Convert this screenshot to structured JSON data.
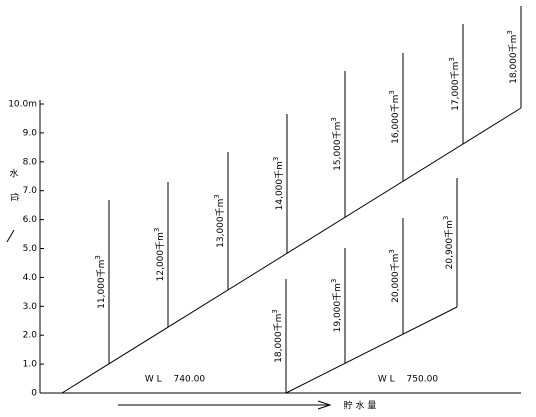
{
  "y_axis": {
    "ticks": [
      "0",
      "1.0",
      "2.0",
      "3.0",
      "4.0",
      "5.0",
      "6.0",
      "7.0",
      "8.0",
      "9.0",
      "10.0m"
    ],
    "label": [
      "水",
      "位"
    ]
  },
  "x_axis": {
    "label": "貯 水 量"
  },
  "curves": [
    {
      "label": "W L　 740.00",
      "storages": [
        {
          "text": "11,000千m",
          "sup": "3"
        },
        {
          "text": "12,000千m",
          "sup": "3"
        },
        {
          "text": "13,000千m",
          "sup": "3"
        },
        {
          "text": "14,000千m",
          "sup": "3"
        },
        {
          "text": "15,000千m",
          "sup": "3"
        },
        {
          "text": "16,000千m",
          "sup": "3"
        },
        {
          "text": "17,000千m",
          "sup": "3"
        },
        {
          "text": "18,000千m",
          "sup": "3"
        }
      ]
    },
    {
      "label": "W L　 750.00",
      "storages": [
        {
          "text": "18,000千m",
          "sup": "3"
        },
        {
          "text": "19,000千m",
          "sup": "3"
        },
        {
          "text": "20,000千m",
          "sup": "3"
        },
        {
          "text": "20,900千m",
          "sup": "3"
        }
      ]
    }
  ]
}
